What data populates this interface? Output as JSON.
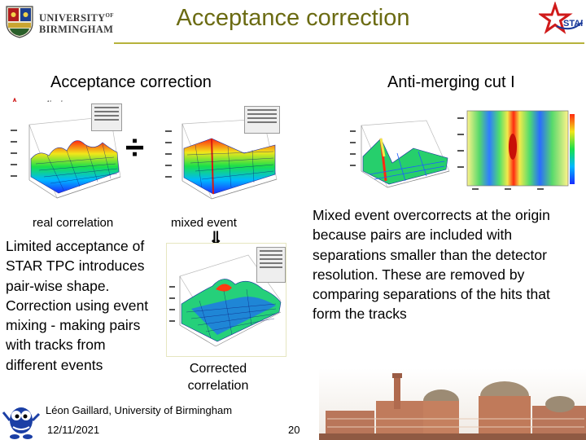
{
  "header": {
    "university_line1": "UNIVERSITY",
    "university_of": "OF",
    "university_line2": "BIRMINGHAM",
    "title": "Acceptance correction",
    "logo_star_text": "STAR",
    "accent_color": "#6b6b12",
    "rule_color": "#b6b23c"
  },
  "sections": {
    "left_heading": "Acceptance correction",
    "right_heading": "Anti-merging cut I",
    "preliminary_label": "preliminary"
  },
  "figures": {
    "real_label": "real correlation",
    "mixed_label": "mixed event",
    "corrected_label_line1": "Corrected",
    "corrected_label_line2": "correlation",
    "divide_glyph": "÷",
    "arrow_glyph": "⇓"
  },
  "text": {
    "limited": "Limited acceptance of STAR TPC introduces pair-wise shape. Correction using event mixing - making pairs with tracks from different events",
    "mixed_over": "Mixed event overcorrects at the origin because pairs are included with separations smaller than the detector resolution. These are removed by comparing separations of the hits that form the tracks"
  },
  "footer": {
    "author": "Léon Gaillard, University of Birmingham",
    "date": "12/11/2021",
    "page": "20"
  },
  "icons": [
    "university-crest-icon",
    "star-logo-icon",
    "star-small-icon",
    "mascot-icon"
  ]
}
